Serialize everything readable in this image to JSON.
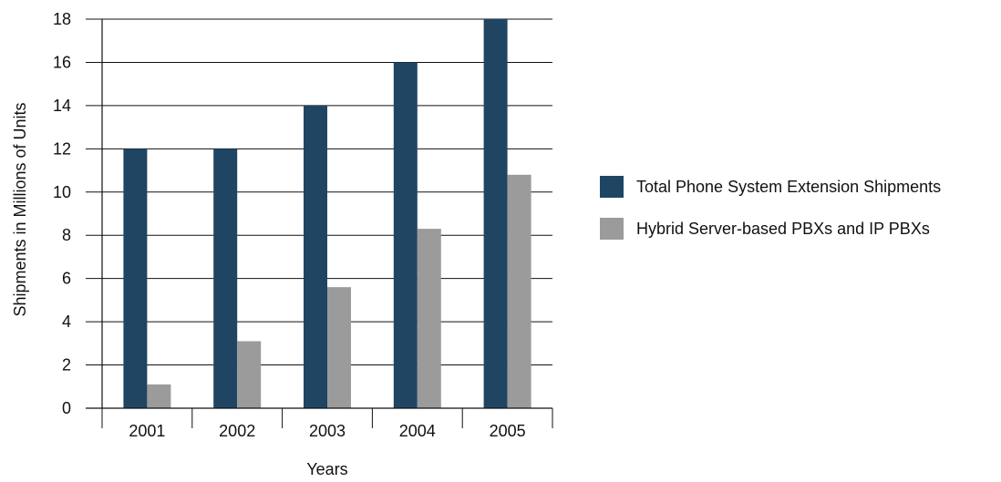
{
  "chart_data": {
    "type": "bar",
    "title": "",
    "xlabel": "Years",
    "ylabel": "Shipments in Millions of Units",
    "categories": [
      "2001",
      "2002",
      "2003",
      "2004",
      "2005"
    ],
    "ylim": [
      0,
      18
    ],
    "yticks": [
      "0",
      "2",
      "4",
      "6",
      "8",
      "10",
      "12",
      "14",
      "16",
      "18"
    ],
    "grid": true,
    "legend_position": "right",
    "series": [
      {
        "name": "Total Phone System Extension Shipments",
        "color": "#1f4563",
        "values": [
          12,
          12,
          14,
          16,
          18
        ]
      },
      {
        "name": "Hybrid Server-based PBXs and IP PBXs",
        "color": "#9b9b9b",
        "values": [
          1.1,
          3.1,
          5.6,
          8.3,
          10.8
        ]
      }
    ]
  }
}
